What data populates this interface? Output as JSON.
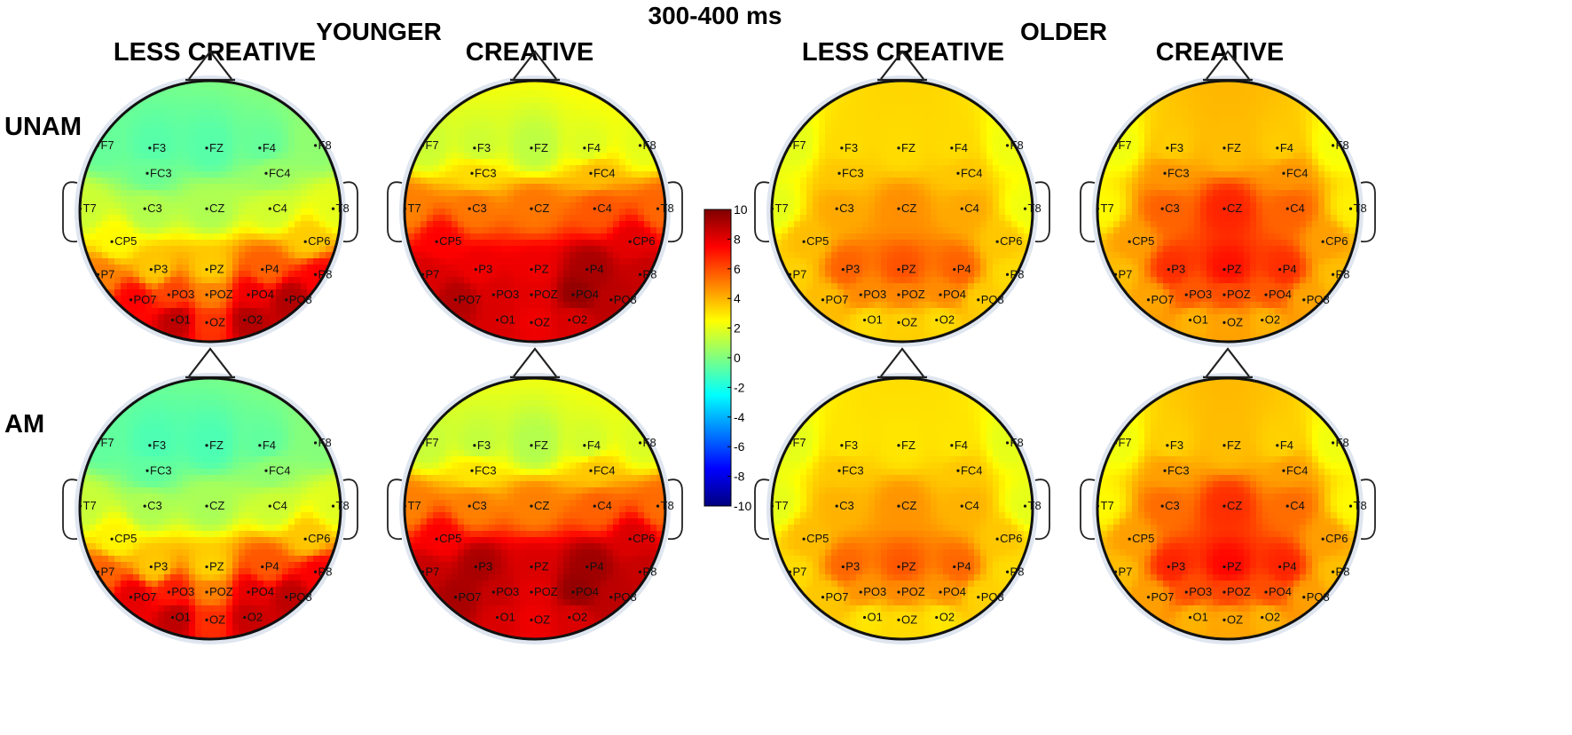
{
  "figure": {
    "title": "300-400 ms",
    "groups": [
      "YOUNGER",
      "OLDER"
    ],
    "column_labels": [
      "LESS CREATIVE",
      "CREATIVE",
      "LESS CREATIVE",
      "CREATIVE"
    ],
    "row_labels": [
      "UNAM",
      "AM"
    ]
  },
  "colorbar": {
    "ticks": [
      "10",
      "8",
      "6",
      "4",
      "2",
      "0",
      "-2",
      "-4",
      "-6",
      "-8",
      "-10"
    ],
    "range": [
      -10,
      10
    ],
    "colormap": [
      "#00007f",
      "#0000ff",
      "#0080ff",
      "#00ffff",
      "#80ff80",
      "#ffff00",
      "#ff8000",
      "#ff0000",
      "#7f0000"
    ]
  },
  "electrodes": [
    {
      "name": "F7",
      "u": -0.86,
      "v": -0.52
    },
    {
      "name": "F3",
      "u": -0.45,
      "v": -0.5
    },
    {
      "name": "FZ",
      "u": 0.0,
      "v": -0.5
    },
    {
      "name": "F4",
      "u": 0.42,
      "v": -0.5
    },
    {
      "name": "F8",
      "u": 0.86,
      "v": -0.52
    },
    {
      "name": "FC3",
      "u": -0.47,
      "v": -0.3
    },
    {
      "name": "FC4",
      "u": 0.47,
      "v": -0.3
    },
    {
      "name": "T7",
      "u": -1.0,
      "v": -0.02
    },
    {
      "name": "C3",
      "u": -0.49,
      "v": -0.02
    },
    {
      "name": "CZ",
      "u": 0.0,
      "v": -0.02
    },
    {
      "name": "C4",
      "u": 0.5,
      "v": -0.02
    },
    {
      "name": "T8",
      "u": 1.0,
      "v": -0.02
    },
    {
      "name": "CP5",
      "u": -0.75,
      "v": 0.24
    },
    {
      "name": "CP6",
      "u": 0.78,
      "v": 0.24
    },
    {
      "name": "P7",
      "u": -0.86,
      "v": 0.5
    },
    {
      "name": "P3",
      "u": -0.44,
      "v": 0.46
    },
    {
      "name": "PZ",
      "u": 0.0,
      "v": 0.46
    },
    {
      "name": "P4",
      "u": 0.44,
      "v": 0.46
    },
    {
      "name": "P8",
      "u": 0.86,
      "v": 0.5
    },
    {
      "name": "PO7",
      "u": -0.6,
      "v": 0.7
    },
    {
      "name": "PO3",
      "u": -0.3,
      "v": 0.66
    },
    {
      "name": "POZ",
      "u": 0.0,
      "v": 0.66
    },
    {
      "name": "PO4",
      "u": 0.33,
      "v": 0.66
    },
    {
      "name": "PO8",
      "u": 0.63,
      "v": 0.7
    },
    {
      "name": "O1",
      "u": -0.27,
      "v": 0.86
    },
    {
      "name": "OZ",
      "u": 0.0,
      "v": 0.88
    },
    {
      "name": "O2",
      "u": 0.3,
      "v": 0.86
    }
  ],
  "maps": [
    {
      "row": "UNAM",
      "group": "YOUNGER",
      "condition": "LESS CREATIVE",
      "values": {
        "F7": -0.5,
        "F3": -0.8,
        "FZ": -0.8,
        "F4": -0.5,
        "F8": 0.3,
        "FC3": -0.4,
        "FC4": 0.5,
        "T7": 1.5,
        "C3": 1.0,
        "CZ": 0.9,
        "C4": 1.6,
        "T8": 2.0,
        "CP5": 2.6,
        "CP6": 3.5,
        "P7": 5.0,
        "P3": 3.6,
        "PZ": 3.5,
        "P4": 5.6,
        "P8": 7.5,
        "PO7": 7.5,
        "PO3": 6.2,
        "POZ": 5.0,
        "PO4": 7.8,
        "PO8": 9.0,
        "O1": 8.8,
        "OZ": 6.5,
        "O2": 9.0
      }
    },
    {
      "row": "UNAM",
      "group": "YOUNGER",
      "condition": "CREATIVE",
      "values": {
        "F7": 1.5,
        "F3": 1.5,
        "FZ": 1.2,
        "F4": 1.8,
        "F8": 2.0,
        "FC3": 3.2,
        "FC4": 3.8,
        "T7": 5.0,
        "C3": 5.2,
        "CZ": 5.2,
        "C4": 5.8,
        "T8": 5.5,
        "CP5": 7.5,
        "CP6": 8.0,
        "P7": 8.2,
        "P3": 7.8,
        "PZ": 7.8,
        "P4": 9.2,
        "P8": 8.6,
        "PO7": 9.0,
        "PO3": 8.2,
        "POZ": 8.0,
        "PO4": 9.6,
        "PO8": 8.8,
        "O1": 8.2,
        "OZ": 7.8,
        "O2": 8.2
      }
    },
    {
      "row": "UNAM",
      "group": "OLDER",
      "condition": "LESS CREATIVE",
      "values": {
        "F7": 2.0,
        "F3": 3.2,
        "FZ": 3.2,
        "F4": 3.2,
        "F8": 2.2,
        "FC3": 3.6,
        "FC4": 3.6,
        "T7": 2.0,
        "C3": 4.2,
        "CZ": 4.7,
        "C4": 4.2,
        "T8": 2.2,
        "CP5": 3.8,
        "CP6": 3.6,
        "P7": 3.4,
        "P3": 5.6,
        "PZ": 5.9,
        "P4": 5.6,
        "P8": 3.2,
        "PO7": 3.8,
        "PO3": 4.8,
        "POZ": 4.9,
        "PO4": 4.8,
        "PO8": 3.5,
        "O1": 3.2,
        "OZ": 3.4,
        "O2": 3.2
      }
    },
    {
      "row": "UNAM",
      "group": "OLDER",
      "condition": "CREATIVE",
      "values": {
        "F7": 2.2,
        "F3": 3.5,
        "FZ": 3.8,
        "F4": 3.5,
        "F8": 2.3,
        "FC3": 4.6,
        "FC4": 4.6,
        "T7": 2.6,
        "C3": 5.6,
        "CZ": 6.8,
        "C4": 5.6,
        "T8": 2.8,
        "CP5": 4.4,
        "CP6": 4.4,
        "P7": 3.8,
        "P3": 6.6,
        "PZ": 7.2,
        "P4": 6.6,
        "P8": 3.8,
        "PO7": 4.3,
        "PO3": 5.8,
        "POZ": 6.0,
        "PO4": 5.8,
        "PO8": 4.3,
        "O1": 4.0,
        "OZ": 4.3,
        "O2": 4.0
      }
    },
    {
      "row": "AM",
      "group": "YOUNGER",
      "condition": "LESS CREATIVE",
      "values": {
        "F7": -0.6,
        "F3": -1.0,
        "FZ": -1.0,
        "F4": -0.6,
        "F8": 0.1,
        "FC3": -0.6,
        "FC4": 0.3,
        "T7": 1.4,
        "C3": 0.9,
        "CZ": 0.8,
        "C4": 1.5,
        "T8": 1.9,
        "CP5": 2.7,
        "CP6": 3.6,
        "P7": 5.6,
        "P3": 3.6,
        "PZ": 3.4,
        "P4": 5.8,
        "P8": 7.6,
        "PO7": 8.0,
        "PO3": 7.0,
        "POZ": 5.0,
        "PO4": 8.0,
        "PO8": 8.8,
        "O1": 8.8,
        "OZ": 6.6,
        "O2": 8.6
      }
    },
    {
      "row": "AM",
      "group": "YOUNGER",
      "condition": "CREATIVE",
      "values": {
        "F7": 1.4,
        "F3": 1.3,
        "FZ": 1.0,
        "F4": 1.6,
        "F8": 1.8,
        "FC3": 3.0,
        "FC4": 3.6,
        "T7": 5.0,
        "C3": 5.0,
        "CZ": 5.0,
        "C4": 5.6,
        "T8": 5.4,
        "CP5": 7.6,
        "CP6": 8.2,
        "P7": 8.6,
        "P3": 9.2,
        "PZ": 8.2,
        "P4": 9.4,
        "P8": 8.6,
        "PO7": 9.2,
        "PO3": 8.6,
        "POZ": 8.0,
        "PO4": 9.6,
        "PO8": 8.8,
        "O1": 8.2,
        "OZ": 7.8,
        "O2": 8.2
      }
    },
    {
      "row": "AM",
      "group": "OLDER",
      "condition": "LESS CREATIVE",
      "values": {
        "F7": 2.0,
        "F3": 3.0,
        "FZ": 3.0,
        "F4": 3.0,
        "F8": 2.0,
        "FC3": 3.6,
        "FC4": 3.6,
        "T7": 2.0,
        "C3": 4.0,
        "CZ": 4.6,
        "C4": 4.0,
        "T8": 2.0,
        "CP5": 3.8,
        "CP6": 3.6,
        "P7": 3.2,
        "P3": 5.5,
        "PZ": 5.8,
        "P4": 5.5,
        "P8": 3.2,
        "PO7": 3.6,
        "PO3": 4.6,
        "POZ": 4.8,
        "PO4": 4.6,
        "PO8": 3.4,
        "O1": 3.0,
        "OZ": 3.2,
        "O2": 3.0
      }
    },
    {
      "row": "AM",
      "group": "OLDER",
      "condition": "CREATIVE",
      "values": {
        "F7": 2.2,
        "F3": 3.4,
        "FZ": 3.8,
        "F4": 3.4,
        "F8": 2.2,
        "FC3": 4.4,
        "FC4": 4.4,
        "T7": 2.6,
        "C3": 5.4,
        "CZ": 6.6,
        "C4": 5.4,
        "T8": 2.6,
        "CP5": 4.4,
        "CP6": 4.4,
        "P7": 3.8,
        "P3": 6.8,
        "PZ": 7.4,
        "P4": 6.8,
        "P8": 3.8,
        "PO7": 4.4,
        "PO3": 6.0,
        "POZ": 6.2,
        "PO4": 6.0,
        "PO8": 4.4,
        "O1": 4.0,
        "OZ": 4.2,
        "O2": 4.0
      }
    }
  ]
}
